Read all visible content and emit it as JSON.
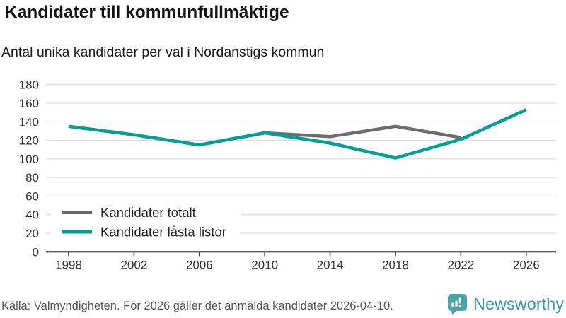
{
  "header": {
    "title": "Kandidater till kommunfullmäktige",
    "subtitle": "Antal unika kandidater per val i Nordanstigs kommun"
  },
  "chart_data": {
    "type": "line",
    "title": "Kandidater till kommunfullmäktige",
    "subtitle": "Antal unika kandidater per val i Nordanstigs kommun",
    "x": [
      1998,
      2002,
      2006,
      2010,
      2014,
      2018,
      2022,
      2026
    ],
    "series": [
      {
        "name": "Kandidater totalt",
        "color": "#6e6a72",
        "values": [
          135,
          126,
          115,
          128,
          124,
          135,
          123,
          null
        ]
      },
      {
        "name": "Kandidater låsta listor",
        "color": "#009e96",
        "values": [
          135,
          126,
          115,
          128,
          117,
          101,
          121,
          153
        ]
      }
    ],
    "ylim": [
      0,
      180
    ],
    "ytick_step": 20,
    "grid": true,
    "legend_position": "inside-bottom-left"
  },
  "footer": {
    "source": "Källa: Valmyndigheten. För 2026 gäller det anmälda kandidater 2026-04-10.",
    "brand": "Newsworthy"
  },
  "colors": {
    "accent_teal": "#009e96",
    "line_gray": "#6e6a72",
    "gridline": "#dedede",
    "axis": "#2b2b2b",
    "brand_icon": "#4ba5a4",
    "brand_text": "#3c96a4"
  }
}
